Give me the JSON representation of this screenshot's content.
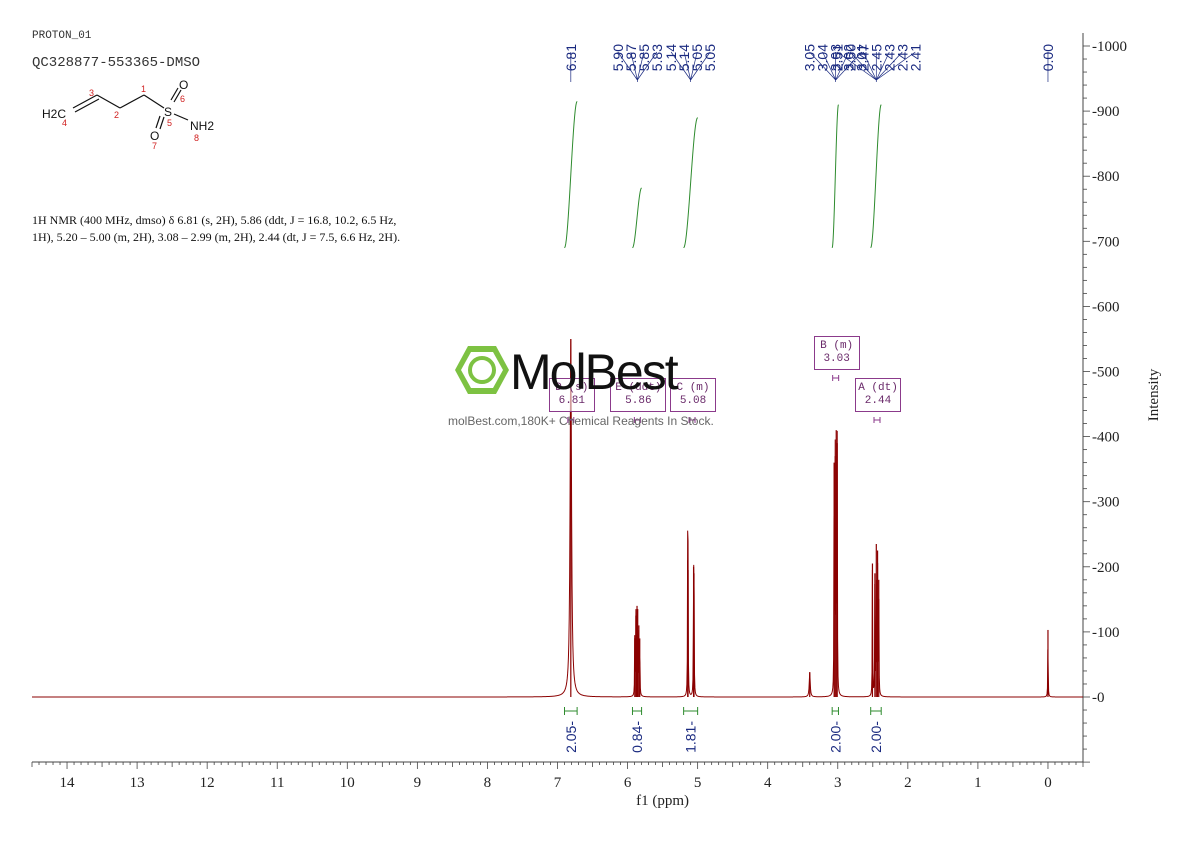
{
  "header": {
    "sample": "PROTON_01",
    "id": "QC328877-553365-DMSO"
  },
  "molecule": {
    "atoms": {
      "h2c": "H2C",
      "s": "S",
      "o_top": "O",
      "o_bottom": "O",
      "nh2": "NH2"
    },
    "numbers": [
      "1",
      "2",
      "3",
      "4",
      "5",
      "6",
      "7",
      "8"
    ]
  },
  "nmr_description": "1H NMR (400 MHz, dmso) δ 6.81 (s, 2H), 5.86 (ddt, J = 16.8, 10.2, 6.5 Hz, 1H), 5.20 – 5.00 (m, 2H), 3.08 – 2.99 (m, 2H), 2.44 (dt, J = 7.5, 6.6 Hz, 2H).",
  "watermark": {
    "brand": "MolBest",
    "tagline": "molBest.com,180K+ Chemical Reagents In Stock."
  },
  "colors": {
    "spectrum": "#8b0000",
    "integral": "#2e8b2e",
    "peak_label": "#1a2a80",
    "multiplet_box": "#8b3a8b",
    "logo_green": "#7dc242"
  },
  "chart_data": {
    "type": "line",
    "xlabel": "f1 (ppm)",
    "ylabel": "Intensity",
    "xlim": [
      14.5,
      -0.5
    ],
    "ylim": [
      -100,
      1000
    ],
    "x_ticks": [
      14,
      13,
      12,
      11,
      10,
      9,
      8,
      7,
      6,
      5,
      4,
      3,
      2,
      1,
      0
    ],
    "y_ticks": [
      0,
      100,
      200,
      300,
      400,
      500,
      600,
      700,
      800,
      900,
      1000
    ],
    "peaks": [
      {
        "ppm": 6.81,
        "height": 550,
        "width": 0.012
      },
      {
        "ppm": 5.897,
        "height": 95,
        "width": 0.003
      },
      {
        "ppm": 5.881,
        "height": 125,
        "width": 0.003
      },
      {
        "ppm": 5.865,
        "height": 140,
        "width": 0.003
      },
      {
        "ppm": 5.855,
        "height": 135,
        "width": 0.003
      },
      {
        "ppm": 5.839,
        "height": 110,
        "width": 0.003
      },
      {
        "ppm": 5.826,
        "height": 90,
        "width": 0.003
      },
      {
        "ppm": 5.142,
        "height": 210,
        "width": 0.003
      },
      {
        "ppm": 5.137,
        "height": 195,
        "width": 0.003
      },
      {
        "ppm": 5.058,
        "height": 200,
        "width": 0.003
      },
      {
        "ppm": 5.052,
        "height": 190,
        "width": 0.003
      },
      {
        "ppm": 3.4,
        "height": 38,
        "width": 0.008
      },
      {
        "ppm": 3.052,
        "height": 360,
        "width": 0.003
      },
      {
        "ppm": 3.037,
        "height": 370,
        "width": 0.003
      },
      {
        "ppm": 3.022,
        "height": 410,
        "width": 0.003
      },
      {
        "ppm": 3.008,
        "height": 390,
        "width": 0.003
      },
      {
        "ppm": 2.505,
        "height": 205,
        "width": 0.003
      },
      {
        "ppm": 2.47,
        "height": 190,
        "width": 0.003
      },
      {
        "ppm": 2.45,
        "height": 235,
        "width": 0.003
      },
      {
        "ppm": 2.432,
        "height": 225,
        "width": 0.003
      },
      {
        "ppm": 2.415,
        "height": 180,
        "width": 0.003
      },
      {
        "ppm": 0.0,
        "height": 103,
        "width": 0.003
      }
    ],
    "peak_labels": [
      {
        "group": "6.81",
        "ppm": 6.81,
        "labels": [
          "6.81"
        ]
      },
      {
        "group": "5.86",
        "ppm": 5.86,
        "labels": [
          "5.90",
          "5.87",
          "5.85",
          "5.83"
        ]
      },
      {
        "group": "5.10",
        "ppm": 5.1,
        "labels": [
          "5.14",
          "5.14",
          "5.05",
          "5.05"
        ]
      },
      {
        "group": "3.03",
        "ppm": 3.03,
        "labels": [
          "3.05",
          "3.04",
          "3.03",
          "3.02",
          "3.01"
        ]
      },
      {
        "group": "2.45",
        "ppm": 2.45,
        "labels": [
          "2.51",
          "2.50",
          "2.47",
          "2.45",
          "2.43",
          "2.43",
          "2.41"
        ]
      },
      {
        "group": "0.00",
        "ppm": 0.0,
        "labels": [
          "0.00"
        ]
      }
    ],
    "integrals": [
      {
        "from": 6.9,
        "to": 6.72,
        "value": "2.05",
        "y_start": 690,
        "y_end": 915
      },
      {
        "from": 5.93,
        "to": 5.8,
        "value": "0.84",
        "y_start": 690,
        "y_end": 782
      },
      {
        "from": 5.2,
        "to": 5.0,
        "value": "1.81",
        "y_start": 690,
        "y_end": 890
      },
      {
        "from": 3.08,
        "to": 2.99,
        "value": "2.00",
        "y_start": 690,
        "y_end": 910
      },
      {
        "from": 2.53,
        "to": 2.38,
        "value": "2.00",
        "y_start": 690,
        "y_end": 910
      }
    ],
    "multiplets": [
      {
        "letter": "D",
        "type": "s",
        "label": "D (s)",
        "value": "6.81",
        "ppm": 6.81
      },
      {
        "letter": "E",
        "type": "ddt",
        "label": "E (ddt)",
        "value": "5.86",
        "ppm": 5.86
      },
      {
        "letter": "C",
        "type": "m",
        "label": "C (m)",
        "value": "5.08",
        "ppm": 5.08
      },
      {
        "letter": "B",
        "type": "m",
        "label": "B (m)",
        "value": "3.03",
        "ppm": 3.03
      },
      {
        "letter": "A",
        "type": "dt",
        "label": "A (dt)",
        "value": "2.44",
        "ppm": 2.44
      }
    ]
  }
}
